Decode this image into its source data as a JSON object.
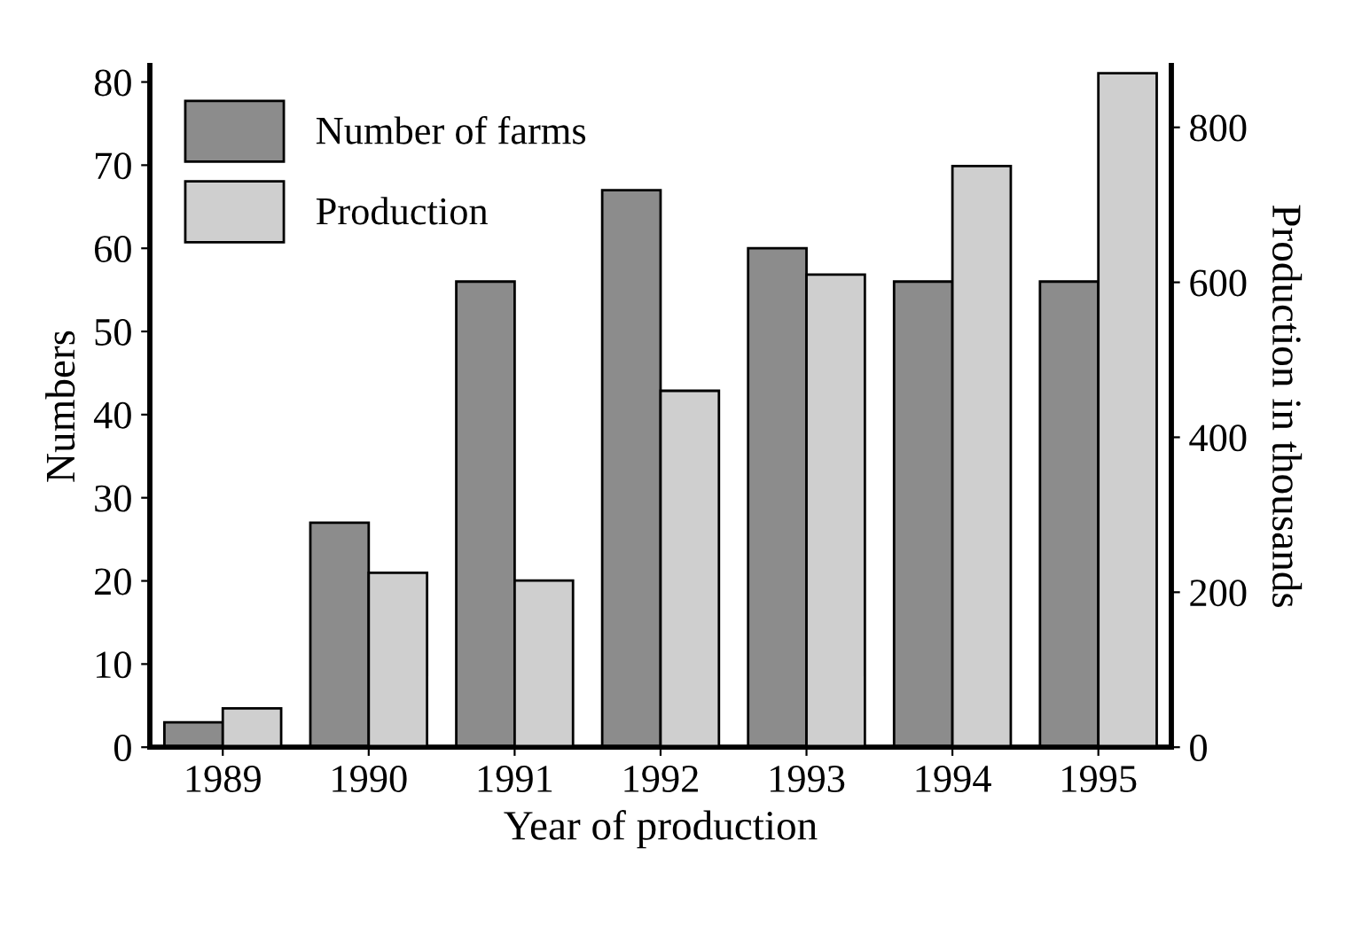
{
  "chart_data": {
    "type": "bar",
    "xlabel": "Year of production",
    "ylabel": "Numbers",
    "y2label": "Production in thousands",
    "categories": [
      "1989",
      "1990",
      "1991",
      "1992",
      "1993",
      "1994",
      "1995"
    ],
    "series": [
      {
        "name": "Number of farms",
        "color": "#8c8c8c",
        "values": [
          3,
          27,
          56,
          67,
          60,
          56,
          56
        ]
      },
      {
        "name": "Production",
        "color": "#cfcfcf",
        "axis": "y2",
        "values": [
          50,
          225,
          215,
          460,
          610,
          750,
          870
        ]
      }
    ],
    "ylim": [
      0,
      82
    ],
    "yticks": [
      0,
      10,
      20,
      30,
      40,
      50,
      60,
      70,
      80
    ],
    "y2lim": [
      0,
      880
    ],
    "y2ticks": [
      0,
      200,
      400,
      600,
      800
    ],
    "grid": false,
    "legend": "top left"
  }
}
